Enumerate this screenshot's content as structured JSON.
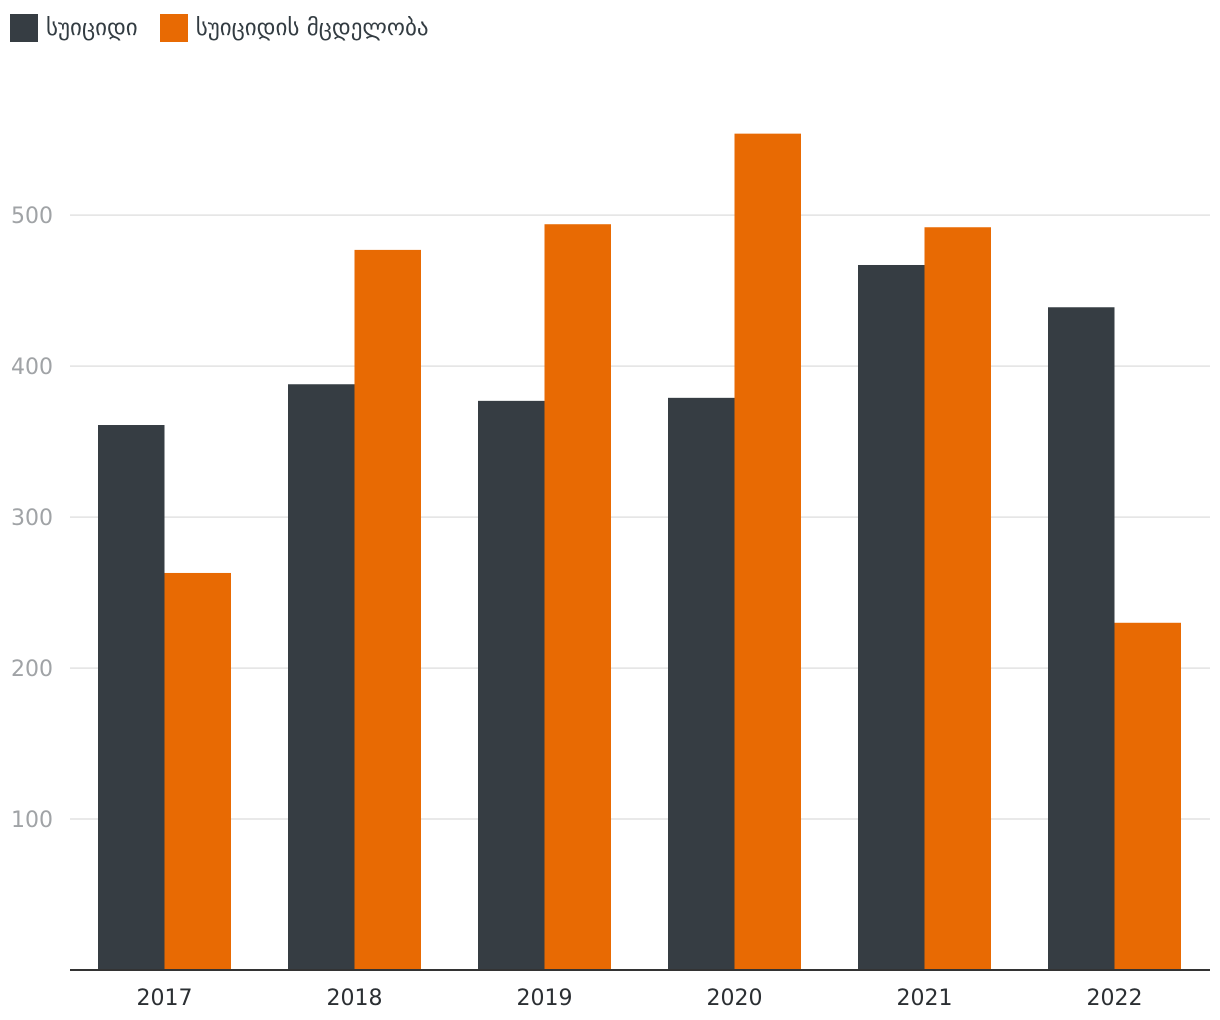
{
  "chart_data": {
    "type": "bar",
    "categories": [
      "2017",
      "2018",
      "2019",
      "2020",
      "2021",
      "2022"
    ],
    "series": [
      {
        "name": "სუიციდი",
        "values": [
          361,
          388,
          377,
          379,
          467,
          439
        ],
        "color": "#363d43"
      },
      {
        "name": "სუიციდის მცდელობა",
        "values": [
          263,
          477,
          494,
          554,
          492,
          230
        ],
        "color": "#e86a03"
      }
    ],
    "y_ticks": [
      100,
      200,
      300,
      400,
      500
    ],
    "ylim": [
      0,
      580
    ],
    "grid": true,
    "legend_position": "top-left",
    "gridline_color": "#e2e2e2",
    "axis_color": "#333333"
  }
}
